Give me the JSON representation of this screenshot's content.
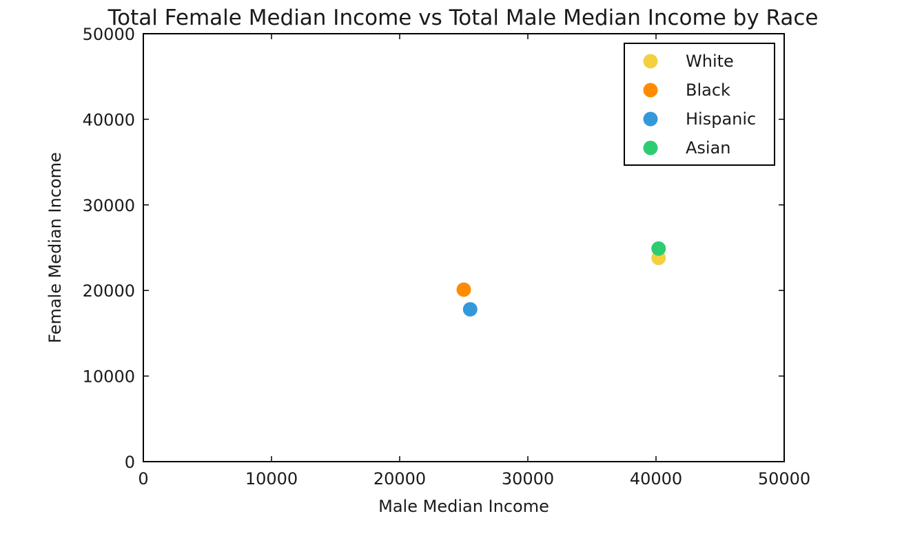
{
  "chart_data": {
    "type": "scatter",
    "title": "Total Female Median Income vs Total Male Median Income by Race",
    "xlabel": "Male Median Income",
    "ylabel": "Female Median Income",
    "xlim": [
      0,
      50000
    ],
    "ylim": [
      0,
      50000
    ],
    "xticks": [
      0,
      10000,
      20000,
      30000,
      40000,
      50000
    ],
    "yticks": [
      0,
      10000,
      20000,
      30000,
      40000,
      50000
    ],
    "xtick_labels": [
      "0",
      "10000",
      "20000",
      "30000",
      "40000",
      "50000"
    ],
    "ytick_labels": [
      "0",
      "10000",
      "20000",
      "30000",
      "40000",
      "50000"
    ],
    "grid": false,
    "legend_position": "top-right",
    "series": [
      {
        "name": "White",
        "color": "#f4d03f",
        "points": [
          {
            "x": 40200,
            "y": 23800
          }
        ]
      },
      {
        "name": "Black",
        "color": "#ff8c00",
        "points": [
          {
            "x": 25000,
            "y": 20100
          }
        ]
      },
      {
        "name": "Hispanic",
        "color": "#3498db",
        "points": [
          {
            "x": 25500,
            "y": 17800
          }
        ]
      },
      {
        "name": "Asian",
        "color": "#2ecc71",
        "points": [
          {
            "x": 40200,
            "y": 24900
          }
        ]
      }
    ]
  }
}
